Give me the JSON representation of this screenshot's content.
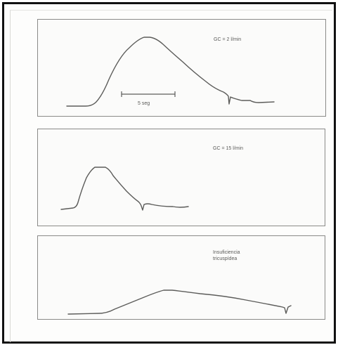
{
  "panels": [
    {
      "label": "GC = 2 l/min",
      "scale_label": "5 seg"
    },
    {
      "label": "GC = 15 l/min"
    },
    {
      "label_line1": "Insuficiencia",
      "label_line2": "tricuspídea"
    }
  ]
}
